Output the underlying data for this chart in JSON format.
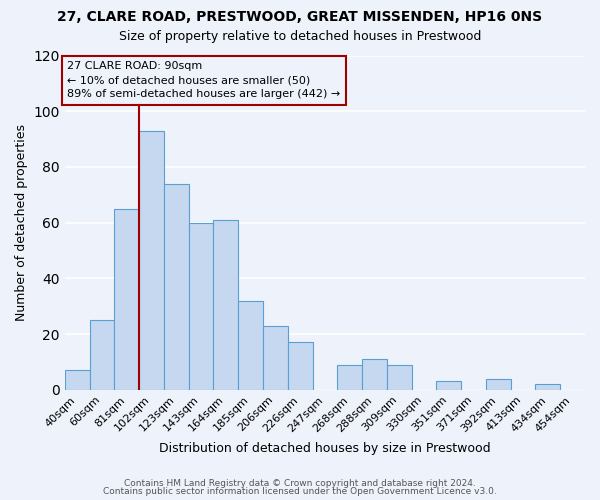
{
  "title": "27, CLARE ROAD, PRESTWOOD, GREAT MISSENDEN, HP16 0NS",
  "subtitle": "Size of property relative to detached houses in Prestwood",
  "xlabel": "Distribution of detached houses by size in Prestwood",
  "ylabel": "Number of detached properties",
  "bar_labels": [
    "40sqm",
    "60sqm",
    "81sqm",
    "102sqm",
    "123sqm",
    "143sqm",
    "164sqm",
    "185sqm",
    "206sqm",
    "226sqm",
    "247sqm",
    "268sqm",
    "288sqm",
    "309sqm",
    "330sqm",
    "351sqm",
    "371sqm",
    "392sqm",
    "413sqm",
    "434sqm",
    "454sqm"
  ],
  "bar_values": [
    7,
    25,
    65,
    93,
    74,
    60,
    61,
    32,
    23,
    17,
    0,
    9,
    11,
    9,
    0,
    3,
    0,
    4,
    0,
    2,
    0
  ],
  "bar_color": "#c5d8f0",
  "bar_edgecolor": "#5a9fd4",
  "ylim": [
    0,
    120
  ],
  "yticks": [
    0,
    20,
    40,
    60,
    80,
    100,
    120
  ],
  "vline_color": "#a00000",
  "annotation_title": "27 CLARE ROAD: 90sqm",
  "annotation_line1": "← 10% of detached houses are smaller (50)",
  "annotation_line2": "89% of semi-detached houses are larger (442) →",
  "annotation_box_edgecolor": "#a00000",
  "footer_line1": "Contains HM Land Registry data © Crown copyright and database right 2024.",
  "footer_line2": "Contains public sector information licensed under the Open Government Licence v3.0.",
  "background_color": "#eef2fa",
  "grid_color": "#ffffff"
}
